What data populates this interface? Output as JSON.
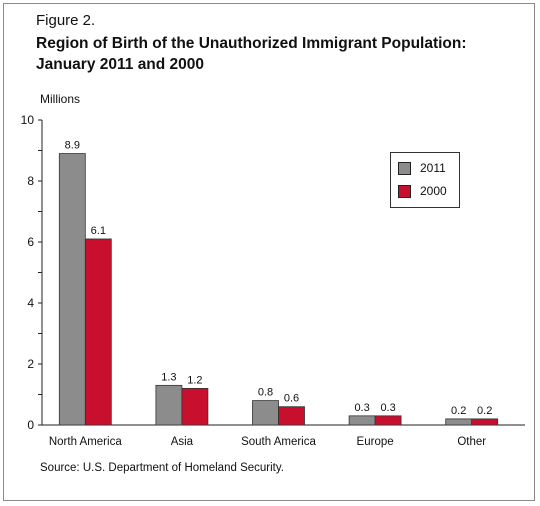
{
  "figure_label": "Figure 2.",
  "title_line1": "Region of Birth of the Unauthorized Immigrant Population:",
  "title_line2": "January 2011 and 2000",
  "units_label": "Millions",
  "source": "Source: U.S. Department of Homeland Security.",
  "colors": {
    "s2011": "#8c8c8c",
    "s2000": "#c8102e"
  },
  "chart_data": {
    "type": "bar",
    "categories": [
      "North America",
      "Asia",
      "South America",
      "Europe",
      "Other"
    ],
    "series": [
      {
        "name": "2011",
        "values": [
          8.9,
          1.3,
          0.8,
          0.3,
          0.2
        ],
        "labels": [
          "8.9",
          "1.3",
          "0.8",
          "0.3",
          "0.2"
        ]
      },
      {
        "name": "2000",
        "values": [
          6.1,
          1.2,
          0.6,
          0.3,
          0.2
        ],
        "labels": [
          "6.1",
          "1.2",
          "0.6",
          "0.3",
          "0.2"
        ]
      }
    ],
    "ylabel": "Millions",
    "ylim": [
      0,
      10
    ],
    "yticks": [
      "0",
      "2",
      "4",
      "6",
      "8",
      "10"
    ],
    "legend_position": "top-right",
    "grid": false
  }
}
